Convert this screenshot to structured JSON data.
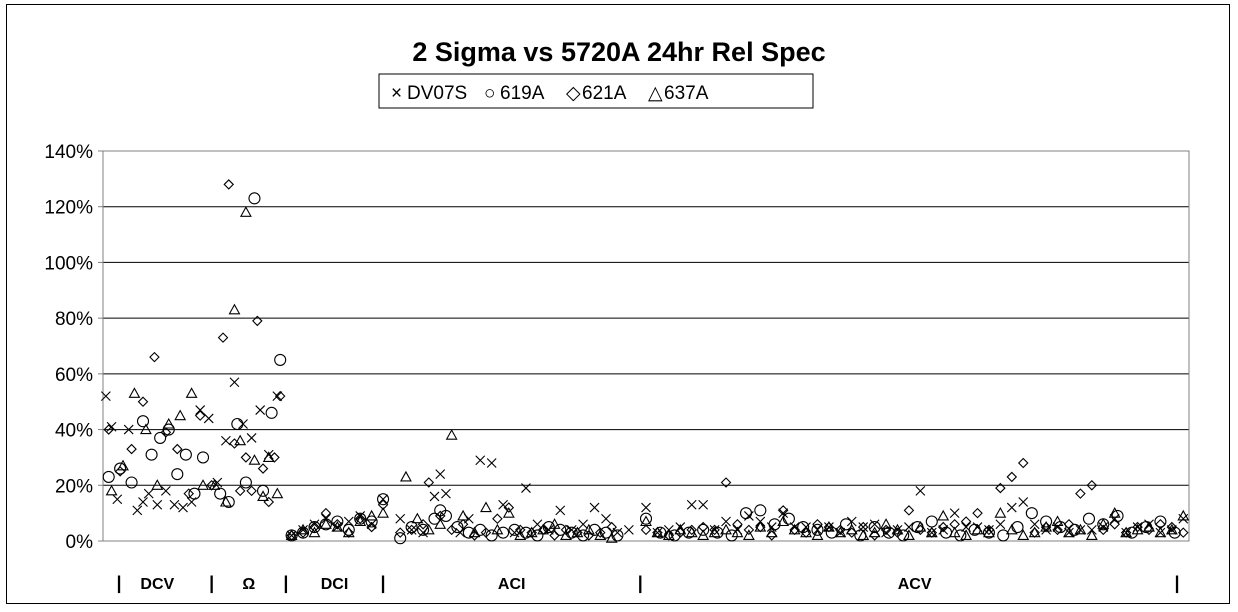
{
  "chart_data": {
    "type": "scatter",
    "title": "2 Sigma vs 5720A 24hr Rel Spec",
    "xlabel": "",
    "ylabel": "",
    "ylim": [
      0,
      140
    ],
    "y_ticks": [
      "0%",
      "20%",
      "40%",
      "60%",
      "80%",
      "100%",
      "120%",
      "140%"
    ],
    "x_range": [
      0,
      380
    ],
    "grid": true,
    "legend_placement": "top-center",
    "legend": [
      {
        "symbol": "×",
        "label": "DV07S"
      },
      {
        "symbol": "○",
        "label": "619A"
      },
      {
        "symbol": "◇",
        "label": "621A"
      },
      {
        "symbol": "△",
        "label": "637A"
      }
    ],
    "regions": [
      {
        "label": "DCV",
        "start": 0,
        "end": 38
      },
      {
        "label": "Ω",
        "start": 38,
        "end": 64
      },
      {
        "label": "DCI",
        "start": 64,
        "end": 98
      },
      {
        "label": "ACI",
        "start": 98,
        "end": 188
      },
      {
        "label": "ACV",
        "start": 188,
        "end": 380
      }
    ],
    "series": [
      {
        "name": "DV07S",
        "marker": "x",
        "x": [
          1,
          3,
          5,
          9,
          12,
          14,
          16,
          19,
          22,
          25,
          28,
          31,
          34,
          37,
          40,
          43,
          46,
          49,
          52,
          55,
          58,
          61,
          66,
          70,
          74,
          78,
          82,
          86,
          90,
          94,
          98,
          104,
          108,
          112,
          116,
          118,
          120,
          125,
          128,
          132,
          136,
          140,
          144,
          148,
          152,
          156,
          160,
          164,
          168,
          172,
          176,
          180,
          184,
          190,
          194,
          198,
          202,
          206,
          210,
          214,
          218,
          222,
          226,
          230,
          234,
          238,
          242,
          246,
          250,
          254,
          258,
          262,
          266,
          270,
          274,
          278,
          282,
          286,
          290,
          294,
          298,
          302,
          306,
          310,
          314,
          318,
          322,
          326,
          330,
          334,
          338,
          342,
          346,
          350,
          354,
          358,
          362,
          366,
          370,
          374,
          378
        ],
        "y": [
          52,
          41,
          15,
          40,
          11,
          14,
          17,
          13,
          18,
          13,
          12,
          14,
          47,
          44,
          21,
          36,
          57,
          42,
          37,
          47,
          31,
          52,
          2,
          4,
          6,
          8,
          5,
          7,
          9,
          6,
          15,
          8,
          4,
          3,
          16,
          24,
          17,
          3,
          8,
          29,
          28,
          13,
          3,
          19,
          6,
          4,
          11,
          4,
          6,
          12,
          8,
          3,
          4,
          12,
          3,
          4,
          5,
          13,
          13,
          4,
          7,
          4,
          9,
          7,
          5,
          10,
          5,
          5,
          4,
          5,
          3,
          7,
          5,
          6,
          3,
          4,
          5,
          18,
          3,
          4,
          10,
          5,
          5,
          4,
          6,
          12,
          14,
          6,
          4,
          5,
          3,
          4,
          4,
          5,
          8,
          3,
          5,
          6,
          3,
          4,
          8
        ]
      },
      {
        "name": "619A",
        "marker": "o",
        "x": [
          2,
          6,
          10,
          14,
          17,
          20,
          23,
          26,
          29,
          32,
          35,
          41,
          44,
          47,
          50,
          53,
          56,
          59,
          62,
          66,
          70,
          74,
          78,
          82,
          86,
          90,
          94,
          98,
          104,
          108,
          112,
          116,
          118,
          120,
          124,
          128,
          132,
          136,
          140,
          144,
          148,
          152,
          156,
          160,
          164,
          168,
          172,
          176,
          180,
          190,
          195,
          200,
          205,
          210,
          215,
          220,
          225,
          230,
          235,
          240,
          245,
          250,
          255,
          260,
          265,
          270,
          275,
          280,
          285,
          290,
          295,
          300,
          305,
          310,
          315,
          320,
          325,
          330,
          335,
          340,
          345,
          350,
          355,
          360,
          365,
          370,
          375
        ],
        "y": [
          23,
          26,
          21,
          43,
          31,
          37,
          40,
          24,
          31,
          17,
          30,
          17,
          14,
          42,
          21,
          123,
          18,
          46,
          65,
          2,
          3,
          5,
          6,
          7,
          4,
          8,
          7,
          15,
          1,
          5,
          4,
          8,
          11,
          9,
          5,
          3,
          4,
          2,
          3,
          4,
          3,
          2,
          5,
          4,
          3,
          2,
          4,
          3,
          2,
          8,
          3,
          2,
          3,
          4,
          3,
          2,
          10,
          11,
          6,
          8,
          5,
          4,
          3,
          6,
          2,
          5,
          3,
          2,
          5,
          7,
          3,
          2,
          4,
          3,
          2,
          5,
          10,
          7,
          5,
          4,
          8,
          6,
          9,
          3,
          5,
          7,
          3
        ]
      },
      {
        "name": "621A",
        "marker": "d",
        "x": [
          2,
          6,
          10,
          14,
          18,
          22,
          26,
          30,
          34,
          38,
          42,
          44,
          46,
          48,
          50,
          52,
          54,
          56,
          58,
          60,
          62,
          66,
          70,
          74,
          78,
          82,
          86,
          90,
          94,
          98,
          104,
          108,
          112,
          114,
          118,
          122,
          126,
          130,
          134,
          138,
          142,
          146,
          150,
          154,
          158,
          162,
          166,
          170,
          174,
          178,
          190,
          194,
          198,
          202,
          206,
          210,
          214,
          218,
          222,
          226,
          230,
          234,
          238,
          242,
          246,
          250,
          254,
          258,
          262,
          266,
          270,
          274,
          278,
          282,
          286,
          290,
          294,
          298,
          302,
          306,
          310,
          314,
          318,
          322,
          326,
          330,
          334,
          338,
          342,
          346,
          350,
          354,
          358,
          362,
          366,
          370,
          374,
          378
        ],
        "y": [
          40,
          25,
          33,
          50,
          66,
          39,
          33,
          17,
          45,
          20,
          73,
          128,
          35,
          18,
          30,
          18,
          79,
          26,
          14,
          30,
          52,
          2,
          3,
          5,
          10,
          6,
          3,
          8,
          5,
          13,
          3,
          4,
          6,
          21,
          9,
          4,
          6,
          2,
          3,
          8,
          12,
          4,
          3,
          4,
          2,
          4,
          3,
          2,
          3,
          5,
          4,
          3,
          2,
          3,
          4,
          5,
          4,
          21,
          6,
          4,
          5,
          2,
          11,
          4,
          3,
          6,
          5,
          4,
          3,
          5,
          2,
          4,
          3,
          11,
          4,
          3,
          5,
          6,
          7,
          10,
          4,
          19,
          23,
          28,
          3,
          5,
          4,
          6,
          17,
          20,
          4,
          6,
          3,
          5,
          4,
          6,
          5,
          3
        ]
      },
      {
        "name": "637A",
        "marker": "t",
        "x": [
          3,
          7,
          11,
          15,
          19,
          23,
          27,
          31,
          35,
          39,
          43,
          46,
          48,
          50,
          53,
          56,
          58,
          61,
          66,
          70,
          74,
          78,
          82,
          86,
          90,
          94,
          98,
          106,
          110,
          114,
          118,
          122,
          126,
          130,
          134,
          138,
          142,
          146,
          150,
          154,
          158,
          162,
          166,
          170,
          174,
          178,
          190,
          194,
          198,
          202,
          206,
          210,
          214,
          218,
          222,
          226,
          230,
          234,
          238,
          242,
          246,
          250,
          254,
          258,
          262,
          266,
          270,
          274,
          278,
          282,
          286,
          290,
          294,
          298,
          302,
          306,
          310,
          314,
          318,
          322,
          326,
          330,
          334,
          338,
          342,
          346,
          350,
          354,
          358,
          362,
          366,
          370,
          374,
          378
        ],
        "y": [
          18,
          27,
          53,
          40,
          20,
          42,
          45,
          53,
          20,
          20,
          14,
          83,
          36,
          118,
          29,
          16,
          30,
          17,
          2,
          4,
          3,
          6,
          5,
          3,
          7,
          9,
          10,
          23,
          8,
          4,
          6,
          38,
          9,
          3,
          12,
          4,
          10,
          2,
          3,
          4,
          6,
          2,
          3,
          4,
          2,
          1,
          7,
          3,
          2,
          4,
          3,
          2,
          3,
          4,
          3,
          2,
          5,
          3,
          7,
          4,
          3,
          2,
          5,
          3,
          4,
          2,
          3,
          6,
          4,
          2,
          5,
          3,
          9,
          3,
          2,
          4,
          3,
          10,
          4,
          2,
          3,
          5,
          7,
          3,
          4,
          2,
          6,
          10,
          3,
          4,
          5,
          3,
          4,
          9
        ]
      }
    ]
  }
}
